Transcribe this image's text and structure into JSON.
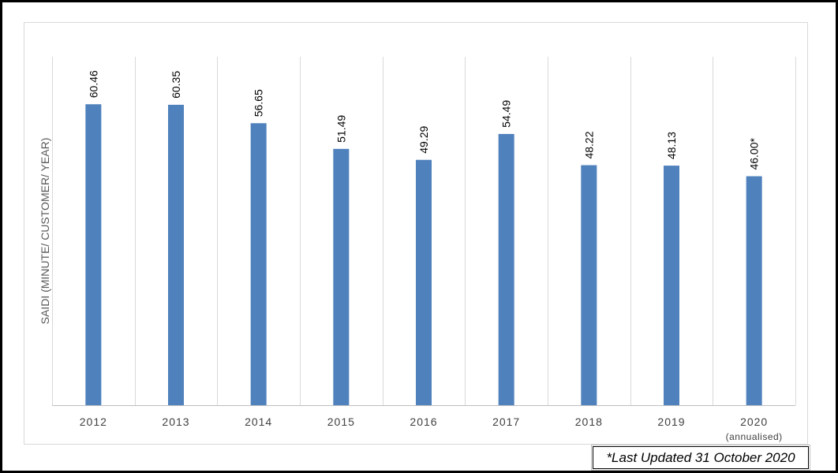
{
  "chart_data": {
    "type": "bar",
    "categories": [
      "2012",
      "2013",
      "2014",
      "2015",
      "2016",
      "2017",
      "2018",
      "2019",
      "2020"
    ],
    "category_sublabels": [
      "",
      "",
      "",
      "",
      "",
      "",
      "",
      "",
      "(annualised)"
    ],
    "values": [
      60.46,
      60.35,
      56.65,
      51.49,
      49.29,
      54.49,
      48.22,
      48.13,
      46.0
    ],
    "data_labels": [
      "60.46",
      "60.35",
      "56.65",
      "51.49",
      "49.29",
      "54.49",
      "48.22",
      "48.13",
      "46.00*"
    ],
    "ylabel": "SAIDI (MINUTE/ CUSTOMER/ YEAR)",
    "xlabel": "",
    "title": "",
    "ylim": [
      0,
      70
    ],
    "grid": "vertical",
    "bar_color": "#4f81bd",
    "legend": "none"
  },
  "footnote": "*Last Updated 31 October 2020"
}
